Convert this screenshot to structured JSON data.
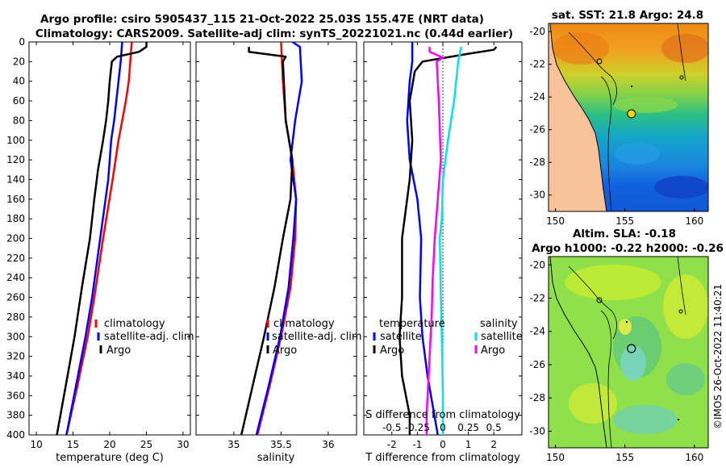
{
  "title": {
    "line1": "Argo profile: csiro 5905437_115 21-Oct-2022 25.03S 155.47E (NRT data)",
    "line2": "Climatology: CARS2009. Satellite-adj clim: synTS_20221021.nc (0.44d earlier)"
  },
  "side_label": "©IMOS 26-Oct-2022 11:40:21",
  "colors": {
    "climatology": "#ff0000",
    "satellite": "#0000ff",
    "argo": "#000000",
    "sal_satellite": "#00e5e5",
    "sal_argo": "#ff00ff"
  },
  "chart_data": [
    {
      "type": "line",
      "name": "temperature",
      "xlabel": "temperature (deg C)",
      "ylabel": "",
      "xlim": [
        9,
        31
      ],
      "ylim": [
        400,
        0
      ],
      "xticks": [
        10,
        15,
        20,
        25,
        30
      ],
      "yticks": [
        0,
        20,
        40,
        60,
        80,
        100,
        120,
        140,
        160,
        180,
        200,
        220,
        240,
        260,
        280,
        300,
        320,
        340,
        360,
        380,
        400
      ],
      "legend": [
        "climatology",
        "satellite-adj. clim",
        "Argo"
      ],
      "series": [
        {
          "name": "climatology",
          "color": "#ff0000",
          "depth": [
            0,
            20,
            40,
            60,
            80,
            100,
            140,
            200,
            260,
            300,
            350,
            400
          ],
          "values": [
            23.0,
            22.8,
            22.6,
            22.2,
            21.7,
            21.2,
            20.4,
            19.1,
            17.9,
            17.0,
            15.6,
            14.1
          ]
        },
        {
          "name": "satellite-adj. clim",
          "color": "#0000ff",
          "depth": [
            0,
            20,
            40,
            60,
            80,
            100,
            140,
            200,
            260,
            300,
            350,
            400
          ],
          "values": [
            21.7,
            21.5,
            21.2,
            20.9,
            20.6,
            20.2,
            19.8,
            18.7,
            17.6,
            16.7,
            15.4,
            14.1
          ]
        },
        {
          "name": "Argo",
          "color": "#000000",
          "depth": [
            0,
            5,
            10,
            15,
            20,
            40,
            60,
            80,
            100,
            130,
            160,
            200,
            250,
            300,
            350,
            400
          ],
          "values": [
            25.0,
            25.0,
            24.0,
            21.0,
            20.3,
            20.0,
            19.8,
            19.5,
            19.1,
            18.4,
            17.9,
            17.3,
            16.2,
            15.2,
            14.0,
            12.8
          ]
        }
      ]
    },
    {
      "type": "line",
      "name": "salinity",
      "xlabel": "salinity",
      "ylabel": "",
      "xlim": [
        34.6,
        36.3
      ],
      "ylim": [
        400,
        0
      ],
      "xticks": [
        35,
        35.5,
        36
      ],
      "xticklabels": [
        "35",
        "35.5",
        "36"
      ],
      "legend": [
        "climatology",
        "satellite-adj. clim",
        "Argo"
      ],
      "series": [
        {
          "name": "climatology",
          "color": "#ff0000",
          "depth": [
            0,
            40,
            80,
            120,
            160,
            200,
            250,
            300,
            350,
            400
          ],
          "values": [
            35.5,
            35.52,
            35.55,
            35.62,
            35.66,
            35.65,
            35.6,
            35.5,
            35.38,
            35.25
          ]
        },
        {
          "name": "satellite-adj. clim",
          "color": "#0000ff",
          "depth": [
            0,
            5,
            40,
            80,
            120,
            160,
            200,
            250,
            300,
            350,
            400
          ],
          "values": [
            35.62,
            35.7,
            35.72,
            35.65,
            35.6,
            35.66,
            35.63,
            35.58,
            35.49,
            35.37,
            35.24
          ]
        },
        {
          "name": "Argo",
          "color": "#000000",
          "depth": [
            5,
            10,
            15,
            20,
            40,
            80,
            120,
            160,
            200,
            250,
            300,
            350,
            400
          ],
          "values": [
            35.16,
            35.16,
            35.55,
            35.52,
            35.53,
            35.55,
            35.62,
            35.6,
            35.52,
            35.43,
            35.32,
            35.2,
            35.08
          ]
        }
      ]
    },
    {
      "type": "line",
      "name": "difference",
      "xlabel": "T difference from climatology",
      "ylabel": "",
      "xlim": [
        -3.1,
        3.1
      ],
      "ylim": [
        400,
        0
      ],
      "xticks": [
        -2,
        -1,
        0,
        1,
        2
      ],
      "zero_line": 0,
      "s_axis": {
        "label": "S difference from climatology",
        "ticks": [
          -0.5,
          -0.25,
          0,
          0.25,
          0.5
        ],
        "ticklabels": [
          "-0.5",
          "-0.25",
          "0",
          "0.25",
          "0.5"
        ],
        "scale": 4
      },
      "legend_t_title": "temperature",
      "legend_s_title": "salinity",
      "legend": [
        "satellite",
        "Argo",
        "satellite",
        "Argo"
      ],
      "series": [
        {
          "name": "T satellite",
          "color": "#0000ff",
          "depth": [
            0,
            20,
            40,
            80,
            120,
            160,
            200,
            260,
            300,
            340,
            400
          ],
          "values": [
            -1.2,
            -1.2,
            -1.3,
            -1.4,
            -1.3,
            -1.0,
            -0.85,
            -0.9,
            -0.8,
            -0.6,
            -0.2
          ]
        },
        {
          "name": "T Argo",
          "color": "#000000",
          "depth": [
            5,
            8,
            12,
            20,
            30,
            60,
            100,
            140,
            200,
            260,
            300,
            340,
            380,
            400
          ],
          "values": [
            2.1,
            2.0,
            1.0,
            -0.8,
            -1.1,
            -1.3,
            -1.2,
            -1.3,
            -1.6,
            -1.6,
            -1.7,
            -1.6,
            -1.3,
            -1.3
          ]
        },
        {
          "name": "S satellite",
          "color": "#00e5e5",
          "depth": [
            5,
            20,
            60,
            100,
            140,
            180,
            200,
            260,
            300,
            360,
            400
          ],
          "values": [
            0.18,
            0.15,
            0.11,
            0.05,
            0.0,
            -0.01,
            -0.03,
            -0.02,
            -0.01,
            0.0,
            0.0
          ]
        },
        {
          "name": "S Argo",
          "color": "#ff00ff",
          "depth": [
            5,
            10,
            16,
            20,
            60,
            120,
            200,
            240,
            280,
            300,
            340,
            380,
            400
          ],
          "values": [
            -0.13,
            -0.13,
            0.0,
            -0.06,
            -0.04,
            -0.02,
            -0.08,
            -0.1,
            -0.11,
            -0.12,
            -0.14,
            -0.16,
            -0.16
          ]
        }
      ]
    },
    {
      "type": "heatmap",
      "name": "sst-map",
      "title": "sat. SST: 21.8 Argo: 24.8",
      "xlim": [
        149.5,
        161
      ],
      "ylim": [
        -31,
        -19.5
      ],
      "xticks": [
        150,
        155,
        160
      ],
      "yticks": [
        -20,
        -22,
        -24,
        -26,
        -28,
        -30
      ],
      "argo_position": [
        155.47,
        -25.03
      ]
    },
    {
      "type": "heatmap",
      "name": "sla-map",
      "title_line1": "Altim. SLA: -0.18",
      "title_line2": "Argo h1000: -0.22 h2000: -0.26",
      "xlim": [
        149.5,
        161
      ],
      "ylim": [
        -31,
        -19.5
      ],
      "xticks": [
        150,
        155,
        160
      ],
      "yticks": [
        -20,
        -22,
        -24,
        -26,
        -28,
        -30
      ],
      "argo_position": [
        155.47,
        -25.03
      ]
    }
  ]
}
